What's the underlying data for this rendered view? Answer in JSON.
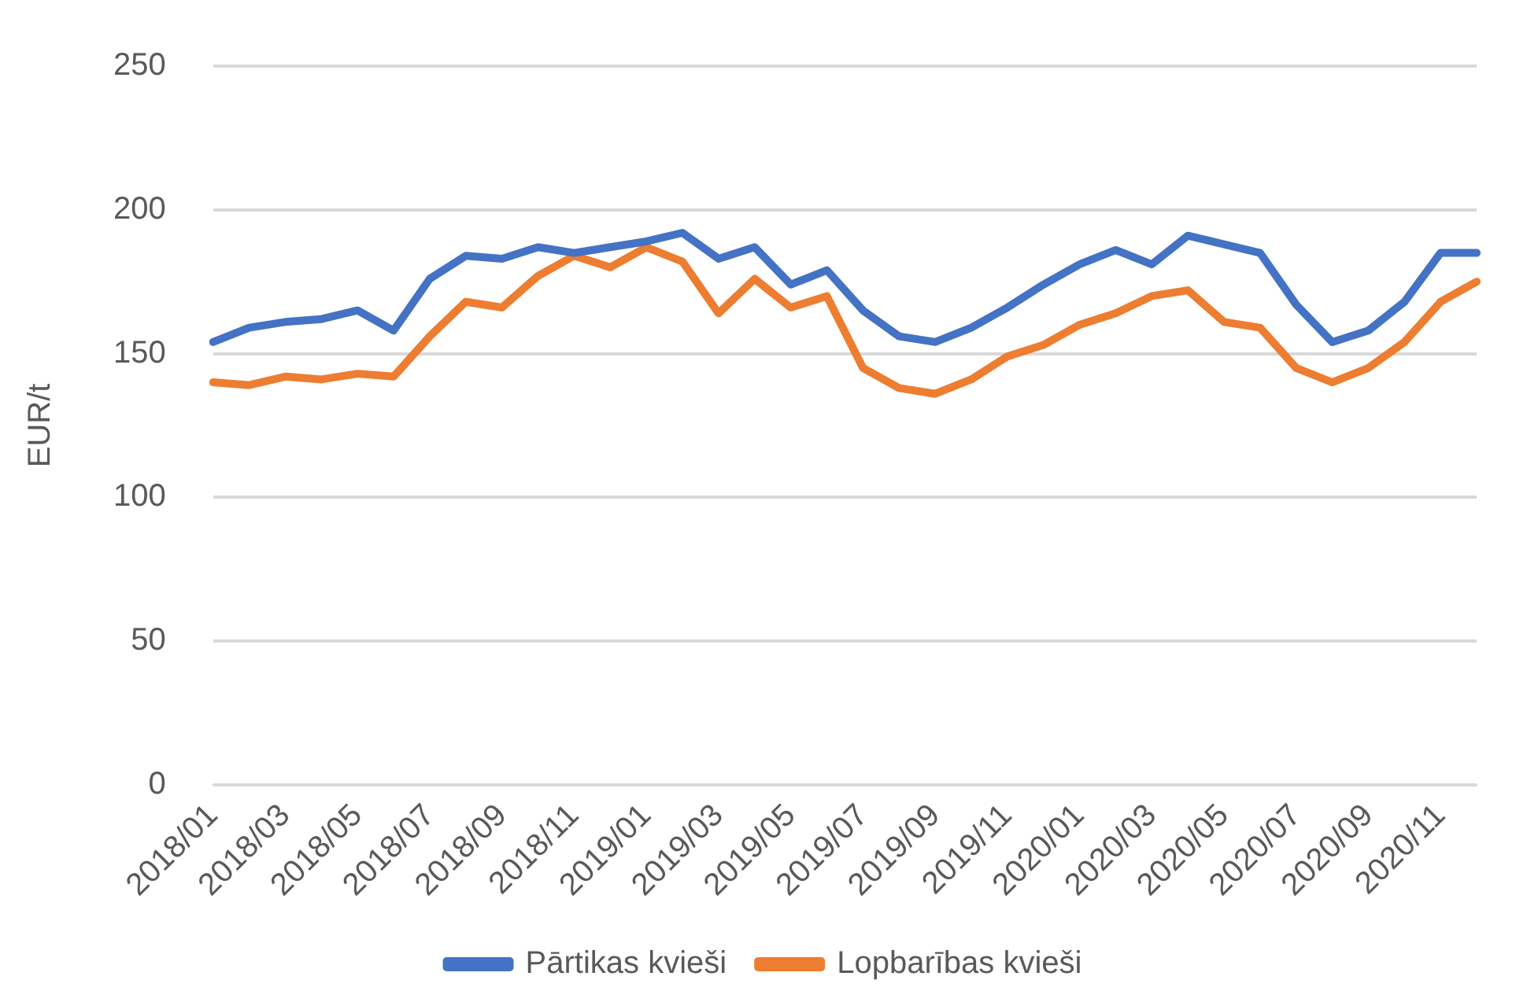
{
  "chart_data": {
    "type": "line",
    "ylabel": "EUR/t",
    "categories": [
      "2018/01",
      null,
      "2018/03",
      null,
      "2018/05",
      null,
      "2018/07",
      null,
      "2018/09",
      null,
      "2018/11",
      null,
      "2019/01",
      null,
      "2019/03",
      null,
      "2019/05",
      null,
      "2019/07",
      null,
      "2019/09",
      null,
      "2019/11",
      null,
      "2020/01",
      null,
      "2020/03",
      null,
      "2020/05",
      null,
      "2020/07",
      null,
      "2020/09",
      null,
      "2020/11",
      null
    ],
    "series": [
      {
        "name": "Pārtikas kvieši",
        "color": "#4472c4",
        "values": [
          154,
          159,
          161,
          162,
          165,
          158,
          176,
          184,
          183,
          187,
          185,
          187,
          189,
          192,
          183,
          187,
          174,
          179,
          165,
          156,
          154,
          159,
          166,
          174,
          181,
          186,
          181,
          191,
          188,
          185,
          167,
          154,
          158,
          168,
          185,
          185
        ]
      },
      {
        "name": "Lopbarības kvieši",
        "color": "#ed7d31",
        "values": [
          140,
          139,
          142,
          141,
          143,
          142,
          156,
          168,
          166,
          177,
          184,
          180,
          187,
          182,
          164,
          176,
          166,
          170,
          145,
          138,
          136,
          141,
          149,
          153,
          160,
          164,
          170,
          172,
          161,
          159,
          145,
          140,
          145,
          154,
          168,
          175
        ]
      }
    ],
    "ylim": [
      0,
      250
    ],
    "yticks": [
      0,
      50,
      100,
      150,
      200,
      250
    ],
    "grid": "y",
    "legend": "bottom",
    "marker": "none",
    "line_style": "solid"
  }
}
